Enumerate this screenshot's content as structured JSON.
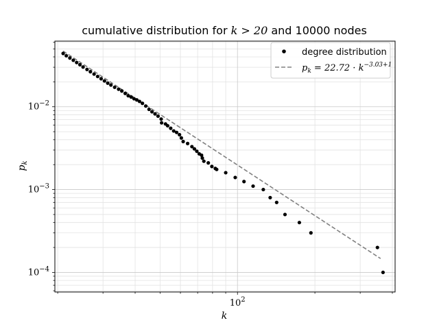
{
  "chart_data": {
    "type": "scatter",
    "title_prefix": "cumulative distribution for ",
    "title_math": "k > 20",
    "title_suffix": " and 10000 nodes",
    "xlabel": "k",
    "ylabel": "p",
    "ylabel_sub": "k",
    "xscale": "log",
    "yscale": "log",
    "xlim": [
      19.5,
      410
    ],
    "ylim": [
      5.8e-05,
      0.062
    ],
    "grid": true,
    "legend_position": "top-right",
    "x_ticks": [
      {
        "value": 100,
        "base": "10",
        "exp": "2"
      }
    ],
    "y_ticks": [
      {
        "value": 0.0001,
        "base": "10",
        "exp": "−4"
      },
      {
        "value": 0.001,
        "base": "10",
        "exp": "−3"
      },
      {
        "value": 0.01,
        "base": "10",
        "exp": "−2"
      }
    ],
    "series": [
      {
        "name": "degree distribution",
        "style": "markers",
        "color": "#000000",
        "points": [
          [
            21,
            0.044
          ],
          [
            21.6,
            0.0413
          ],
          [
            22.3,
            0.0388
          ],
          [
            23,
            0.0364
          ],
          [
            23.7,
            0.0342
          ],
          [
            24.4,
            0.0322
          ],
          [
            25.1,
            0.0302
          ],
          [
            26,
            0.0282
          ],
          [
            26.8,
            0.0265
          ],
          [
            27.7,
            0.0248
          ],
          [
            28.6,
            0.0232
          ],
          [
            29.5,
            0.0218
          ],
          [
            30.4,
            0.0205
          ],
          [
            31.3,
            0.0193
          ],
          [
            32.2,
            0.0183
          ],
          [
            33.3,
            0.0172
          ],
          [
            34.5,
            0.0163
          ],
          [
            35.5,
            0.0155
          ],
          [
            36.6,
            0.0145
          ],
          [
            37.6,
            0.0136
          ],
          [
            38.6,
            0.0131
          ],
          [
            39.6,
            0.0125
          ],
          [
            40.6,
            0.0121
          ],
          [
            41.6,
            0.0116
          ],
          [
            42.7,
            0.011
          ],
          [
            44,
            0.0102
          ],
          [
            45.3,
            0.0093
          ],
          [
            46.5,
            0.0087
          ],
          [
            47.8,
            0.0082
          ],
          [
            49.1,
            0.0077
          ],
          [
            50.5,
            0.0071
          ],
          [
            50.7,
            0.0064
          ],
          [
            52.5,
            0.0062
          ],
          [
            53.5,
            0.0059
          ],
          [
            55,
            0.0055
          ],
          [
            56.5,
            0.0051
          ],
          [
            58,
            0.0049
          ],
          [
            59.5,
            0.0046
          ],
          [
            60.5,
            0.0042
          ],
          [
            61.5,
            0.0038
          ],
          [
            64,
            0.0036
          ],
          [
            66.5,
            0.0033
          ],
          [
            68,
            0.0031
          ],
          [
            69.5,
            0.0029
          ],
          [
            71,
            0.0027
          ],
          [
            72.5,
            0.0026
          ],
          [
            73,
            0.0024
          ],
          [
            74,
            0.0022
          ],
          [
            77,
            0.0021
          ],
          [
            79.5,
            0.0019
          ],
          [
            82,
            0.0018
          ],
          [
            83,
            0.00175
          ],
          [
            90,
            0.0016
          ],
          [
            98,
            0.0014
          ],
          [
            106,
            0.00125
          ],
          [
            115,
            0.0011
          ],
          [
            126,
            0.001
          ],
          [
            134,
            0.0008
          ],
          [
            142,
            0.0007
          ],
          [
            153,
            0.0005
          ],
          [
            174,
            0.0004
          ],
          [
            193,
            0.0003
          ],
          [
            350,
            0.0002
          ],
          [
            368,
            0.0001
          ]
        ]
      },
      {
        "name": "p_k = 22.72 · k^{-3.03+1}",
        "style": "dashed",
        "color": "#808080",
        "line_x": [
          21,
          360
        ],
        "coef": 22.72,
        "exponent": -2.03
      }
    ],
    "legend": {
      "entry1": "degree distribution",
      "entry2_lhs": "p",
      "entry2_sub": "k",
      "entry2_rhs": " = 22.72 · k",
      "entry2_sup": "−3.03+1"
    }
  }
}
